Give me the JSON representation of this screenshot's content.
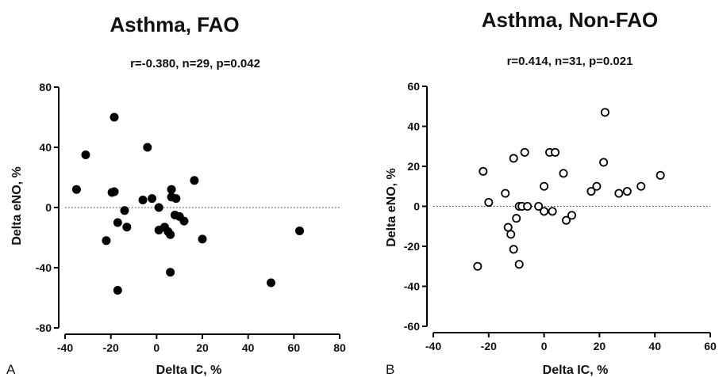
{
  "chart_data": [
    {
      "type": "scatter",
      "panel": "A",
      "title": "Asthma, FAO",
      "subtitle": "r=-0.380, n=29, p=0.042",
      "xlabel": "Delta IC, %",
      "ylabel": "Delta eNO, %",
      "xlim": [
        -40,
        80
      ],
      "ylim": [
        -80,
        80
      ],
      "xticks": [
        -40,
        -20,
        0,
        20,
        40,
        60,
        80
      ],
      "yticks": [
        -80,
        -40,
        0,
        40,
        80
      ],
      "marker": "filled",
      "reference_line_y": 0,
      "points": [
        {
          "x": -18.5,
          "y": 60
        },
        {
          "x": -31,
          "y": 35
        },
        {
          "x": -35,
          "y": 12
        },
        {
          "x": -19.5,
          "y": 10
        },
        {
          "x": -18.5,
          "y": 10.5
        },
        {
          "x": -4,
          "y": 40
        },
        {
          "x": -14,
          "y": -2
        },
        {
          "x": -17,
          "y": -10
        },
        {
          "x": -13,
          "y": -13
        },
        {
          "x": -22,
          "y": -22
        },
        {
          "x": -17,
          "y": -55
        },
        {
          "x": -6,
          "y": 5
        },
        {
          "x": -2,
          "y": 6
        },
        {
          "x": 1,
          "y": 0
        },
        {
          "x": 1,
          "y": -15
        },
        {
          "x": 3.5,
          "y": -13
        },
        {
          "x": 5,
          "y": -16
        },
        {
          "x": 6,
          "y": -18
        },
        {
          "x": 6.5,
          "y": 12
        },
        {
          "x": 6.5,
          "y": 7
        },
        {
          "x": 8,
          "y": -5
        },
        {
          "x": 8.5,
          "y": 6
        },
        {
          "x": 10,
          "y": -6
        },
        {
          "x": 12,
          "y": -9
        },
        {
          "x": 16.5,
          "y": 18
        },
        {
          "x": 20,
          "y": -21
        },
        {
          "x": 6,
          "y": -43
        },
        {
          "x": 50,
          "y": -50
        },
        {
          "x": 62.5,
          "y": -15.5
        }
      ]
    },
    {
      "type": "scatter",
      "panel": "B",
      "title": "Asthma, Non-FAO",
      "subtitle": "r=0.414, n=31, p=0.021",
      "xlabel": "Delta IC, %",
      "ylabel": "Delta eNO, %",
      "xlim": [
        -40,
        60
      ],
      "ylim": [
        -60,
        60
      ],
      "xticks": [
        -40,
        -20,
        0,
        20,
        40,
        60
      ],
      "yticks": [
        -60,
        -40,
        -20,
        0,
        20,
        40,
        60
      ],
      "marker": "open",
      "reference_line_y": 0,
      "points": [
        {
          "x": 22,
          "y": 47
        },
        {
          "x": -7,
          "y": 27
        },
        {
          "x": 2,
          "y": 27
        },
        {
          "x": 4,
          "y": 27
        },
        {
          "x": -11,
          "y": 24
        },
        {
          "x": -22,
          "y": 17.5
        },
        {
          "x": 21.5,
          "y": 22
        },
        {
          "x": 7,
          "y": 16.5
        },
        {
          "x": 42,
          "y": 15.5
        },
        {
          "x": 0,
          "y": 10
        },
        {
          "x": 19,
          "y": 10
        },
        {
          "x": 35,
          "y": 10
        },
        {
          "x": 17,
          "y": 7.5
        },
        {
          "x": 27,
          "y": 6.5
        },
        {
          "x": 30,
          "y": 7.5
        },
        {
          "x": -14,
          "y": 6.5
        },
        {
          "x": -20,
          "y": 2
        },
        {
          "x": -9,
          "y": 0
        },
        {
          "x": -8,
          "y": 0
        },
        {
          "x": -6,
          "y": 0
        },
        {
          "x": -2,
          "y": 0
        },
        {
          "x": 0,
          "y": -2.5
        },
        {
          "x": 3,
          "y": -2.5
        },
        {
          "x": -10,
          "y": -6
        },
        {
          "x": 10,
          "y": -4.5
        },
        {
          "x": 8,
          "y": -7
        },
        {
          "x": -13,
          "y": -10.5
        },
        {
          "x": -12,
          "y": -14
        },
        {
          "x": -11,
          "y": -21.5
        },
        {
          "x": -9,
          "y": -29
        },
        {
          "x": -24,
          "y": -30
        }
      ]
    }
  ]
}
